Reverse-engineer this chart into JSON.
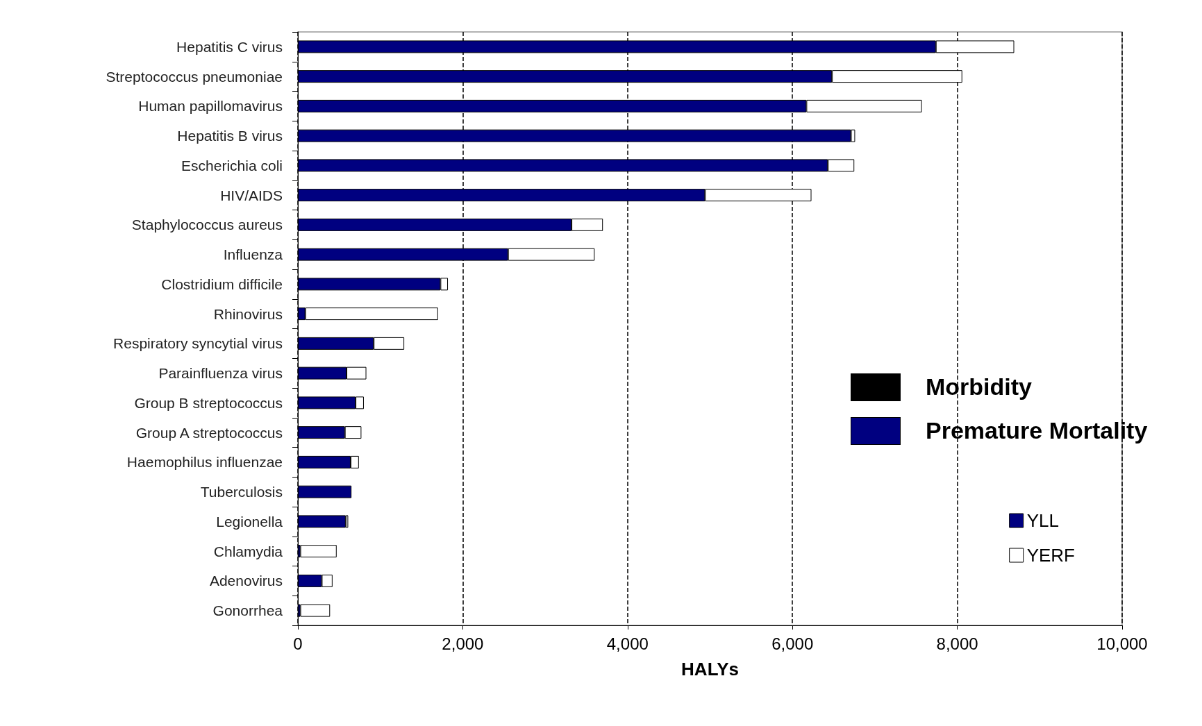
{
  "chart_data": {
    "type": "bar",
    "orientation": "horizontal",
    "stacked": true,
    "xlabel": "HALYs",
    "categories": [
      "Hepatitis C virus",
      "Streptococcus pneumoniae",
      "Human papillomavirus",
      "Hepatitis B virus",
      "Escherichia coli",
      "HIV/AIDS",
      "Staphylococcus aureus",
      "Influenza",
      "Clostridium difficile",
      "Rhinovirus",
      "Respiratory syncytial virus",
      "Parainfluenza virus",
      "Group B streptococcus",
      "Group A streptococcus",
      "Haemophilus influenzae",
      "Tuberculosis",
      "Legionella",
      "Chlamydia",
      "Adenovirus",
      "Gonorrhea"
    ],
    "series": [
      {
        "name": "YLL",
        "color": "#000080",
        "values": [
          7740,
          6480,
          6170,
          6710,
          6430,
          4940,
          3320,
          2550,
          1730,
          90,
          920,
          590,
          700,
          570,
          640,
          650,
          580,
          30,
          290,
          30
        ]
      },
      {
        "name": "YERF",
        "color": "#ffffff",
        "values": [
          950,
          1580,
          1400,
          50,
          320,
          1290,
          380,
          1050,
          90,
          1610,
          370,
          240,
          100,
          200,
          100,
          null,
          30,
          440,
          130,
          360
        ]
      }
    ],
    "xlim": [
      0,
      10000
    ],
    "xticks": [
      0,
      {
        "value": 2000,
        "label": "2,000"
      },
      {
        "value": 4000,
        "label": "4,000"
      },
      {
        "value": 6000,
        "label": "6,000"
      },
      {
        "value": 8000,
        "label": "8,000"
      },
      {
        "value": 10000,
        "label": "10,000"
      }
    ],
    "grid": "x",
    "legend": "bottom right",
    "annotations": [
      "Morbidity",
      "Premature Mortality"
    ]
  }
}
